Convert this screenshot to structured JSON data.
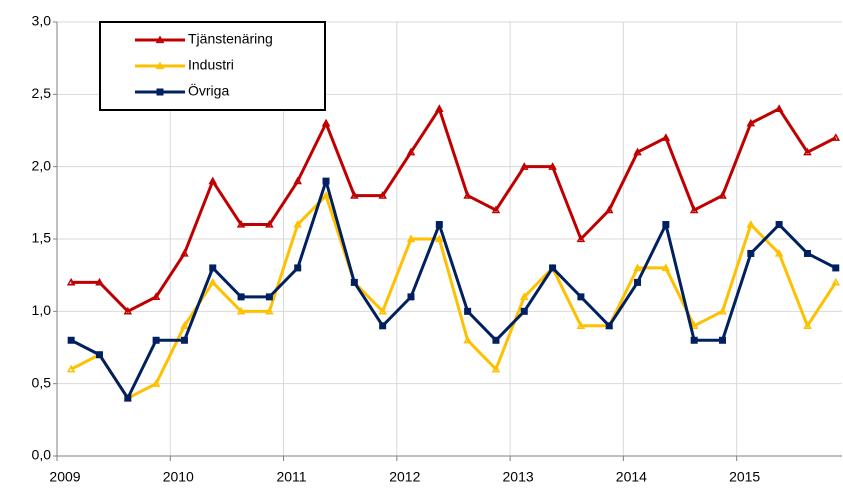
{
  "chart_data": {
    "type": "line",
    "x": [
      2009.125,
      2009.375,
      2009.625,
      2009.875,
      2010.125,
      2010.375,
      2010.625,
      2010.875,
      2011.125,
      2011.375,
      2011.625,
      2011.875,
      2012.125,
      2012.375,
      2012.625,
      2012.875,
      2013.125,
      2013.375,
      2013.625,
      2013.875,
      2014.125,
      2014.375,
      2014.625,
      2014.875,
      2015.125,
      2015.375,
      2015.625,
      2015.875
    ],
    "series": [
      {
        "name": "Tjänstenäring",
        "color": "#c00000",
        "marker": "triangle",
        "values": [
          1.2,
          1.2,
          1.0,
          1.1,
          1.4,
          1.9,
          1.6,
          1.6,
          1.9,
          2.3,
          1.8,
          1.8,
          2.1,
          2.4,
          1.8,
          1.7,
          2.0,
          2.0,
          1.5,
          1.7,
          2.1,
          2.2,
          1.7,
          1.8,
          2.3,
          2.4,
          2.1,
          2.2
        ]
      },
      {
        "name": "Industri",
        "color": "#ffc000",
        "marker": "triangle",
        "values": [
          0.6,
          0.7,
          0.4,
          0.5,
          0.9,
          1.2,
          1.0,
          1.0,
          1.6,
          1.8,
          1.2,
          1.0,
          1.5,
          1.5,
          0.8,
          0.6,
          1.1,
          1.3,
          0.9,
          0.9,
          1.3,
          1.3,
          0.9,
          1.0,
          1.6,
          1.4,
          0.9,
          1.2
        ]
      },
      {
        "name": "Övriga",
        "color": "#002060",
        "marker": "square",
        "values": [
          0.8,
          0.7,
          0.4,
          0.8,
          0.8,
          1.3,
          1.1,
          1.1,
          1.3,
          1.9,
          1.2,
          0.9,
          1.1,
          1.6,
          1.0,
          0.8,
          1.0,
          1.3,
          1.1,
          0.9,
          1.2,
          1.6,
          0.8,
          0.8,
          1.4,
          1.6,
          1.4,
          1.3
        ]
      }
    ],
    "xlim": [
      2009,
      2015.93
    ],
    "xticks": [
      2009,
      2010,
      2011,
      2012,
      2013,
      2014,
      2015
    ],
    "ylim": [
      0,
      3
    ],
    "yticks": [
      {
        "value": 0,
        "label": "0,0"
      },
      {
        "value": 0.5,
        "label": "0,5"
      },
      {
        "value": 1,
        "label": "1,0"
      },
      {
        "value": 1.5,
        "label": "1,5"
      },
      {
        "value": 2,
        "label": "2,0"
      },
      {
        "value": 2.5,
        "label": "2,5"
      },
      {
        "value": 3,
        "label": "3,0"
      }
    ],
    "grid": true,
    "legend": "top-left"
  }
}
